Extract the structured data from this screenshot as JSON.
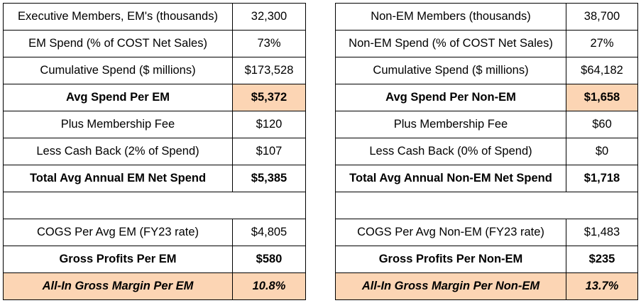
{
  "left": {
    "rows": [
      {
        "label": "Executive Members, EM's (thousands)",
        "value": "32,300"
      },
      {
        "label": "EM Spend (% of COST Net Sales)",
        "value": "73%"
      },
      {
        "label": "Cumulative Spend ($ millions)",
        "value": "$173,528"
      },
      {
        "label": "Avg Spend Per EM",
        "value": "$5,372"
      },
      {
        "label": "Plus Membership Fee",
        "value": "$120"
      },
      {
        "label": "Less Cash Back (2% of Spend)",
        "value": "$107"
      },
      {
        "label": "Total Avg Annual EM Net Spend",
        "value": "$5,385"
      },
      {
        "label": "",
        "value": ""
      },
      {
        "label": "COGS Per Avg EM (FY23 rate)",
        "value": "$4,805"
      },
      {
        "label": "Gross Profits Per EM",
        "value": "$580"
      },
      {
        "label": "All-In Gross Margin Per EM",
        "value": "10.8%"
      }
    ]
  },
  "right": {
    "rows": [
      {
        "label": "Non-EM Members (thousands)",
        "value": "38,700"
      },
      {
        "label": "Non-EM Spend (% of COST Net Sales)",
        "value": "27%"
      },
      {
        "label": "Cumulative Spend ($ millions)",
        "value": "$64,182"
      },
      {
        "label": "Avg Spend Per Non-EM",
        "value": "$1,658"
      },
      {
        "label": "Plus Membership Fee",
        "value": "$60"
      },
      {
        "label": "Less Cash Back (0% of Spend)",
        "value": "$0"
      },
      {
        "label": "Total Avg Annual Non-EM Net Spend",
        "value": "$1,718"
      },
      {
        "label": "",
        "value": ""
      },
      {
        "label": "COGS Per Avg Non-EM (FY23 rate)",
        "value": "$1,483"
      },
      {
        "label": "Gross Profits Per Non-EM",
        "value": "$235"
      },
      {
        "label": "All-In Gross Margin Per Non-EM",
        "value": "13.7%"
      }
    ]
  },
  "colors": {
    "highlight": "#fcd5b4",
    "border": "#000000",
    "text": "#000000"
  }
}
